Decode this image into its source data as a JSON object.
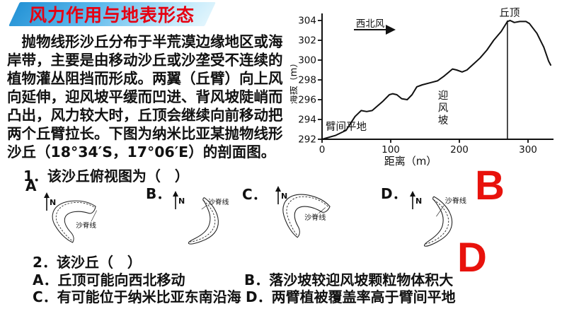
{
  "banner": {
    "title": "风力作用与地表形态",
    "title_color": "#e60012",
    "bg_color_left": "#2593d6",
    "bg_color_right": "#e2f5fd"
  },
  "intro": {
    "text": "抛物线形沙丘分布于半荒漠边缘地区或海岸带，主要是由移动沙丘或沙垄受不连续的植物灌丛阻挡而形成。两翼（丘臂）向上风向延伸，迎风坡平缓而凹进、背风坡陡峭而凸出，风力较大时，丘顶会继续向前移动把两个丘臂拉长。下图为纳米比亚某抛物线形沙丘（18°34′S，17°06′E）的剖面图。"
  },
  "chart_data": {
    "type": "line",
    "xlabel": "距离（m）",
    "ylabel": "海拔（m）",
    "xlim": [
      0,
      335
    ],
    "ylim": [
      292,
      304
    ],
    "xticks": [
      0,
      100,
      200,
      300
    ],
    "yticks": [
      292,
      294,
      296,
      298,
      300,
      302,
      304
    ],
    "grid": false,
    "legend": false,
    "x": [
      0,
      20,
      35,
      48,
      57,
      65,
      73,
      88,
      98,
      103,
      109,
      116,
      124,
      131,
      138,
      146,
      157,
      168,
      178,
      190,
      196,
      204,
      211,
      219,
      230,
      240,
      250,
      261,
      270,
      274,
      280,
      288,
      297,
      302,
      313,
      323,
      330,
      333
    ],
    "y": [
      292,
      292.4,
      292.9,
      294.3,
      294.9,
      294.8,
      294.9,
      295.8,
      296.5,
      296.6,
      296.5,
      296.1,
      296,
      296.5,
      297.3,
      297.5,
      297.7,
      297.9,
      298.4,
      299.1,
      299,
      298.8,
      299,
      299.5,
      300.2,
      301,
      302,
      302.9,
      303.9,
      304,
      303.8,
      303.9,
      303.9,
      303.7,
      302.7,
      301.3,
      299.9,
      299.5
    ],
    "peak_line_x": 270,
    "annotations": {
      "wind": "西北风",
      "peak": "丘顶",
      "windward_slope": "迎风坡",
      "interarm_flat": "臂间平地"
    }
  },
  "q1": {
    "text": "1．该沙丘俯视图为（　）",
    "north_label": "N",
    "ridge_label": "沙脊线",
    "options": [
      {
        "label": "A"
      },
      {
        "label": "B．"
      },
      {
        "label": "C．"
      },
      {
        "label": "D．"
      }
    ]
  },
  "q2": {
    "text": "2．该沙丘（　）",
    "options": [
      "A．丘顶可能向西北移动",
      "B．落沙坡较迎风坡颗粒物体积大",
      "C．有可能位于纳米比亚东南沿海",
      "D．两臂植被覆盖率高于臂间平地"
    ]
  },
  "answers": {
    "q1": "B",
    "q2": "D",
    "color": "#e8120c"
  }
}
